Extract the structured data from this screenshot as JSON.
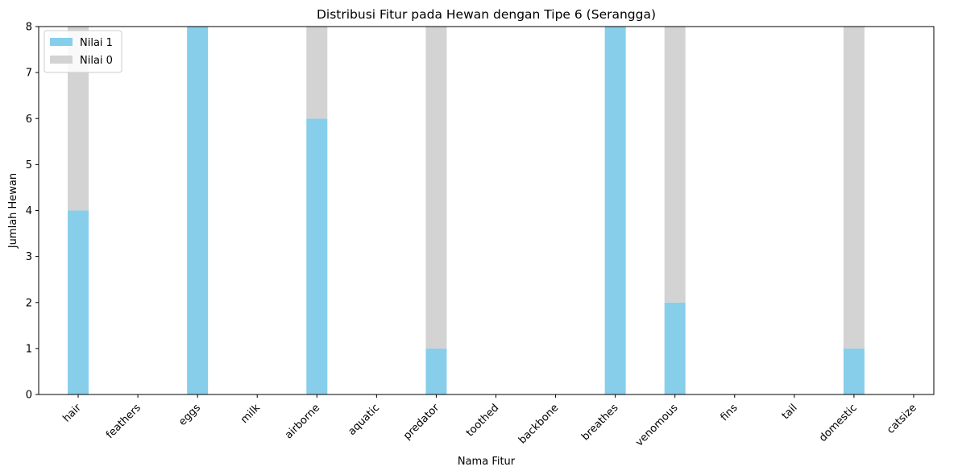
{
  "chart_data": {
    "type": "bar",
    "stacked": true,
    "title": "Distribusi Fitur pada Hewan dengan Tipe 6 (Serangga)",
    "xlabel": "Nama Fitur",
    "ylabel": "Jumlah Hewan",
    "ylim": [
      0,
      8
    ],
    "yticks": [
      "0",
      "1",
      "2",
      "3",
      "4",
      "5",
      "6",
      "7",
      "8"
    ],
    "categories": [
      "hair",
      "feathers",
      "eggs",
      "milk",
      "airborne",
      "aquatic",
      "predator",
      "toothed",
      "backbone",
      "breathes",
      "venomous",
      "fins",
      "tail",
      "domestic",
      "catsize"
    ],
    "series": [
      {
        "name": "Nilai 1",
        "color": "#87ceeb",
        "values": [
          4,
          0,
          8,
          0,
          6,
          0,
          1,
          0,
          0,
          8,
          2,
          0,
          0,
          1,
          0
        ]
      },
      {
        "name": "Nilai 0",
        "color": "#d3d3d3",
        "values": [
          4,
          0,
          0,
          0,
          2,
          0,
          7,
          0,
          0,
          0,
          6,
          0,
          0,
          7,
          0
        ]
      }
    ],
    "grid": false,
    "legend_position": "top-left"
  }
}
